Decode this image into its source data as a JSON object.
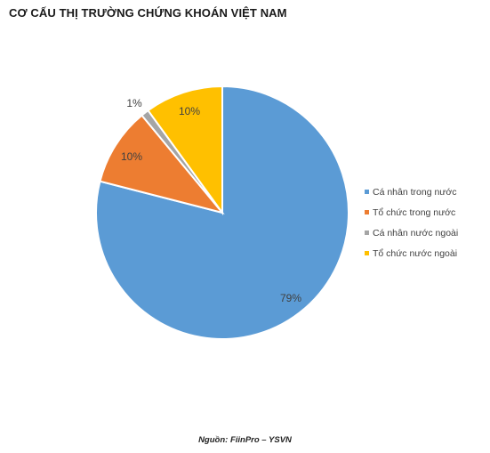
{
  "chart_data": {
    "type": "pie",
    "title": "CƠ CẤU THỊ TRƯỜNG CHỨNG KHOÁN VIỆT NAM",
    "categories": [
      "Cá nhân trong nước",
      "Tổ chức trong nước",
      "Cá nhân nước ngoài",
      "Tổ chức nước ngoài"
    ],
    "values": [
      79,
      10,
      1,
      10
    ],
    "data_labels": [
      "79%",
      "10%",
      "1%",
      "10%"
    ],
    "colors": [
      "#5B9BD5",
      "#ED7D31",
      "#A5A5A5",
      "#FFC000"
    ],
    "legend_position": "right"
  },
  "source_text": "Nguồn: FiinPro – YSVN"
}
